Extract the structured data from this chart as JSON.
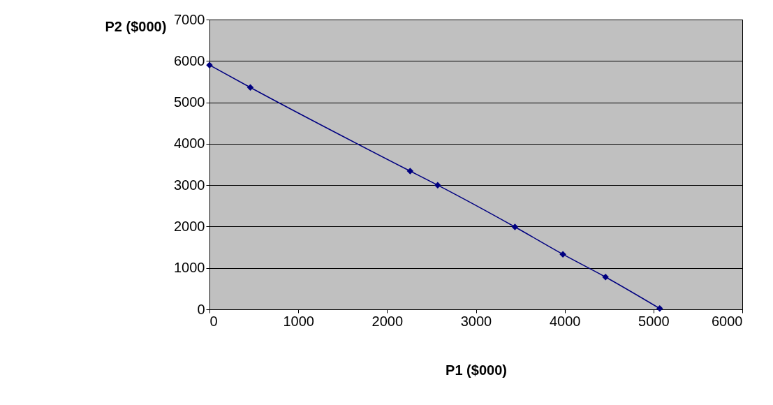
{
  "chart_data": {
    "type": "line",
    "xlabel": "P1 ($000)",
    "ylabel": "P2 ($000)",
    "x": [
      0,
      460,
      2260,
      2570,
      3440,
      3980,
      4460,
      5070
    ],
    "series": [
      {
        "color": "#000080",
        "values": [
          5900,
          5360,
          3340,
          3000,
          1990,
          1330,
          780,
          20
        ]
      }
    ],
    "xlim": [
      0,
      6000
    ],
    "xticks": [
      0,
      1000,
      2000,
      3000,
      4000,
      5000,
      6000
    ],
    "ylim": [
      0,
      7000
    ],
    "yticks": [
      0,
      1000,
      2000,
      3000,
      4000,
      5000,
      6000,
      7000
    ],
    "grid": "y",
    "marker": "diamond",
    "line_style": "solid"
  }
}
